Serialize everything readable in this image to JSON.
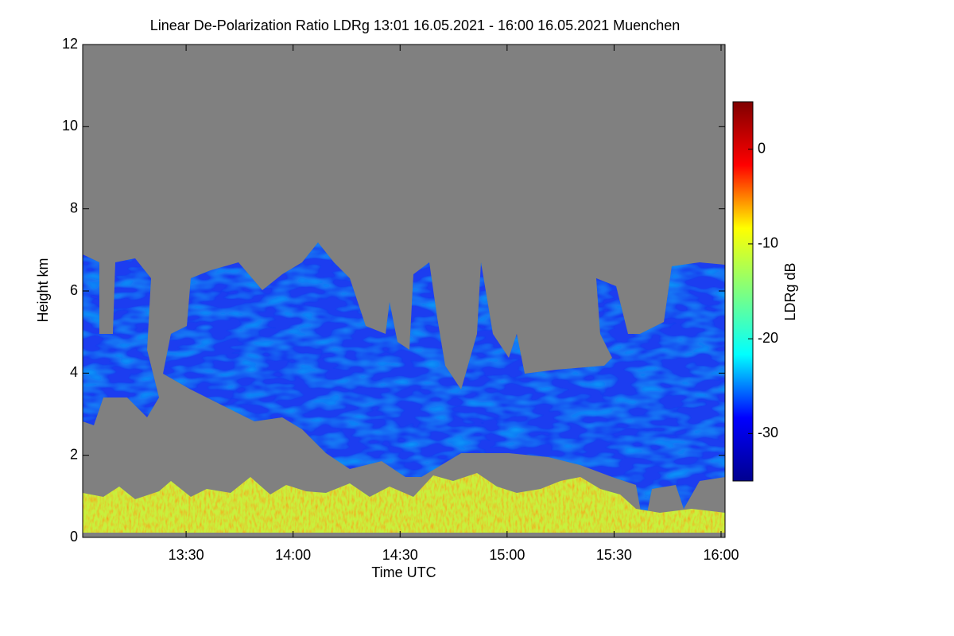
{
  "chart_data": {
    "type": "heatmap",
    "title": "Linear De-Polarization Ratio LDRg   13:01 16.05.2021 - 16:00 16.05.2021 Muenchen",
    "xlabel": "Time UTC",
    "ylabel": "Height km",
    "colorbar_label": "LDRg dB",
    "xlim": [
      "13:01",
      "16:00"
    ],
    "xticks": [
      "13:30",
      "14:00",
      "14:30",
      "15:00",
      "15:30",
      "16:00"
    ],
    "ylim": [
      0,
      12
    ],
    "yticks": [
      0,
      2,
      4,
      6,
      8,
      10,
      12
    ],
    "clim": [
      -35,
      5
    ],
    "cticks": [
      0,
      -10,
      -20,
      -30
    ],
    "colormap": "jet",
    "background_color": "#808080"
  }
}
